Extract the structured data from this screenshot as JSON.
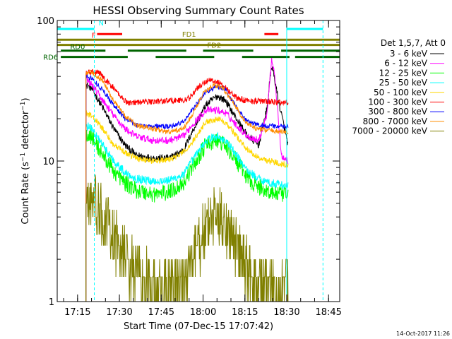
{
  "chart_data": {
    "type": "line",
    "title": "HESSI Observing Summary Count Rates",
    "xlabel": "Start Time (07-Dec-15 17:07:42)",
    "ylabel": "Count Rate (s",
    "ylabel_sup": "−1",
    "ylabel_tail": " detector",
    "ylabel_tail_sup": "−1",
    "ylabel_close": ")",
    "yscale": "log",
    "ylim": [
      1,
      100
    ],
    "xlim": [
      "17:07:42",
      "18:49:00"
    ],
    "y_ticks": [
      {
        "label": "1",
        "value": 1
      },
      {
        "label": "10",
        "value": 10
      },
      {
        "label": "100",
        "value": 100
      }
    ],
    "x_ticks": [
      {
        "label": "17:15",
        "value": "17:15"
      },
      {
        "label": "17:30",
        "value": "17:30"
      },
      {
        "label": "17:45",
        "value": "17:45"
      },
      {
        "label": "18:00",
        "value": "18:00"
      },
      {
        "label": "18:15",
        "value": "18:15"
      },
      {
        "label": "18:30",
        "value": "18:30"
      },
      {
        "label": "18:45",
        "value": "18:45"
      }
    ],
    "legend_title": "Det 1,5,7, Att 0",
    "legend_placement": "right",
    "data_start": "17:18:00",
    "data_end": "18:30:30",
    "series": [
      {
        "name": "3 - 6 keV",
        "color": "#000000",
        "noise": 0.06,
        "points": [
          [
            "17:18:00",
            35
          ],
          [
            "17:20:00",
            33
          ],
          [
            "17:24:00",
            24
          ],
          [
            "17:28:00",
            17
          ],
          [
            "17:32:00",
            13
          ],
          [
            "17:36:00",
            11
          ],
          [
            "17:42:00",
            10.5
          ],
          [
            "17:48:00",
            10.5
          ],
          [
            "17:53:00",
            12
          ],
          [
            "17:56:00",
            16
          ],
          [
            "18:01:00",
            25
          ],
          [
            "18:05:00",
            29
          ],
          [
            "18:08:00",
            27
          ],
          [
            "18:12:00",
            20
          ],
          [
            "18:16:00",
            15
          ],
          [
            "18:20:00",
            13
          ],
          [
            "18:23:00",
            24
          ],
          [
            "18:24:30",
            48
          ],
          [
            "18:25:30",
            40
          ],
          [
            "18:27:00",
            27
          ],
          [
            "18:28:00",
            22
          ],
          [
            "18:30:30",
            13
          ]
        ]
      },
      {
        "name": "6 - 12 keV",
        "color": "#ff00ff",
        "noise": 0.06,
        "points": [
          [
            "17:18:00",
            38
          ],
          [
            "17:20:00",
            35
          ],
          [
            "17:24:00",
            27
          ],
          [
            "17:28:00",
            21
          ],
          [
            "17:32:00",
            17
          ],
          [
            "17:36:00",
            15
          ],
          [
            "17:42:00",
            14
          ],
          [
            "17:48:00",
            14
          ],
          [
            "17:53:00",
            15
          ],
          [
            "17:56:00",
            18
          ],
          [
            "18:01:00",
            23
          ],
          [
            "18:05:00",
            23
          ],
          [
            "18:08:00",
            22
          ],
          [
            "18:12:00",
            18
          ],
          [
            "18:16:00",
            15
          ],
          [
            "18:20:00",
            14
          ],
          [
            "18:23:00",
            22
          ],
          [
            "18:24:30",
            52
          ],
          [
            "18:25:30",
            45
          ],
          [
            "18:27:00",
            20
          ],
          [
            "18:28:00",
            11
          ],
          [
            "18:30:30",
            10
          ]
        ]
      },
      {
        "name": "12 - 25 keV",
        "color": "#00ff00",
        "noise": 0.14,
        "points": [
          [
            "17:18:00",
            16
          ],
          [
            "17:20:00",
            15
          ],
          [
            "17:24:00",
            11
          ],
          [
            "17:28:00",
            8.5
          ],
          [
            "17:32:00",
            7
          ],
          [
            "17:36:00",
            6.2
          ],
          [
            "17:42:00",
            5.8
          ],
          [
            "17:48:00",
            6
          ],
          [
            "17:53:00",
            7
          ],
          [
            "17:56:00",
            9
          ],
          [
            "18:01:00",
            13
          ],
          [
            "18:05:00",
            14
          ],
          [
            "18:08:00",
            13
          ],
          [
            "18:12:00",
            10
          ],
          [
            "18:16:00",
            7.5
          ],
          [
            "18:20:00",
            6.5
          ],
          [
            "18:24:00",
            6
          ],
          [
            "18:28:00",
            5.8
          ],
          [
            "18:30:30",
            5.6
          ]
        ]
      },
      {
        "name": "25 - 50 keV",
        "color": "#00ffff",
        "noise": 0.07,
        "points": [
          [
            "17:18:00",
            18
          ],
          [
            "17:20:00",
            17
          ],
          [
            "17:24:00",
            13
          ],
          [
            "17:28:00",
            10
          ],
          [
            "17:32:00",
            8.3
          ],
          [
            "17:36:00",
            7.5
          ],
          [
            "17:42:00",
            7.2
          ],
          [
            "17:48:00",
            7.3
          ],
          [
            "17:53:00",
            8
          ],
          [
            "17:56:00",
            10
          ],
          [
            "18:01:00",
            14
          ],
          [
            "18:05:00",
            15
          ],
          [
            "18:08:00",
            14
          ],
          [
            "18:12:00",
            11
          ],
          [
            "18:16:00",
            8.5
          ],
          [
            "18:20:00",
            7.5
          ],
          [
            "18:24:00",
            7
          ],
          [
            "18:28:00",
            6.8
          ],
          [
            "18:30:30",
            6.6
          ]
        ]
      },
      {
        "name": "50 - 100 keV",
        "color": "#ffd700",
        "noise": 0.05,
        "points": [
          [
            "17:18:00",
            22
          ],
          [
            "17:20:00",
            21
          ],
          [
            "17:24:00",
            17
          ],
          [
            "17:28:00",
            13
          ],
          [
            "17:32:00",
            11.5
          ],
          [
            "17:36:00",
            10.5
          ],
          [
            "17:42:00",
            10
          ],
          [
            "17:48:00",
            10.2
          ],
          [
            "17:53:00",
            11.5
          ],
          [
            "17:56:00",
            13.5
          ],
          [
            "18:01:00",
            19
          ],
          [
            "18:05:00",
            20
          ],
          [
            "18:08:00",
            19
          ],
          [
            "18:12:00",
            15
          ],
          [
            "18:16:00",
            12
          ],
          [
            "18:20:00",
            10.5
          ],
          [
            "18:24:00",
            10
          ],
          [
            "18:28:00",
            9.6
          ],
          [
            "18:30:30",
            9.4
          ]
        ]
      },
      {
        "name": "100 - 300 keV",
        "color": "#ff0000",
        "noise": 0.05,
        "points": [
          [
            "17:18:00",
            42
          ],
          [
            "17:20:00",
            43
          ],
          [
            "17:23:00",
            42
          ],
          [
            "17:26:00",
            36
          ],
          [
            "17:28:00",
            33
          ],
          [
            "17:31:00",
            28
          ],
          [
            "17:33:00",
            26
          ],
          [
            "17:50:00",
            27
          ],
          [
            "17:53:00",
            27
          ],
          [
            "17:55:00",
            28
          ],
          [
            "17:58:00",
            33
          ],
          [
            "18:02:00",
            38
          ],
          [
            "18:06:00",
            36
          ],
          [
            "18:09:00",
            32
          ],
          [
            "18:12:00",
            28
          ],
          [
            "18:15:00",
            27
          ],
          [
            "18:30:30",
            26
          ]
        ]
      },
      {
        "name": "300 - 800 keV",
        "color": "#0000ff",
        "noise": 0.04,
        "points": [
          [
            "17:18:00",
            40
          ],
          [
            "17:20:00",
            39
          ],
          [
            "17:24:00",
            32
          ],
          [
            "17:28:00",
            25
          ],
          [
            "17:32:00",
            20
          ],
          [
            "17:36:00",
            18
          ],
          [
            "17:48:00",
            17.5
          ],
          [
            "17:53:00",
            19
          ],
          [
            "17:56:00",
            23
          ],
          [
            "18:01:00",
            31
          ],
          [
            "18:05:00",
            34
          ],
          [
            "18:08:00",
            32
          ],
          [
            "18:12:00",
            24
          ],
          [
            "18:16:00",
            19
          ],
          [
            "18:20:00",
            18
          ],
          [
            "18:30:30",
            17.5
          ]
        ]
      },
      {
        "name": "800 - 7000 keV",
        "color": "#ff8c00",
        "noise": 0.04,
        "points": [
          [
            "17:18:00",
            42
          ],
          [
            "17:20:00",
            43
          ],
          [
            "17:24:00",
            37
          ],
          [
            "17:28:00",
            27
          ],
          [
            "17:32:00",
            21
          ],
          [
            "17:36:00",
            18
          ],
          [
            "17:48:00",
            16
          ],
          [
            "17:53:00",
            17
          ],
          [
            "17:56:00",
            21
          ],
          [
            "18:00:00",
            30
          ],
          [
            "18:04:00",
            35
          ],
          [
            "18:07:00",
            33
          ],
          [
            "18:11:00",
            26
          ],
          [
            "18:15:00",
            19
          ],
          [
            "18:19:00",
            17
          ],
          [
            "18:24:00",
            16.5
          ],
          [
            "18:30:30",
            16
          ]
        ]
      },
      {
        "name": "7000 - 20000 keV",
        "color": "#808000",
        "noise": 0.5,
        "step": 0.5,
        "points": [
          [
            "17:18:00",
            5.5
          ],
          [
            "17:21:00",
            5
          ],
          [
            "17:24:00",
            4
          ],
          [
            "17:27:00",
            3
          ],
          [
            "17:30:00",
            2.5
          ],
          [
            "17:33:00",
            2
          ],
          [
            "17:37:00",
            1.5
          ],
          [
            "17:42:00",
            1.3
          ],
          [
            "17:47:00",
            1.2
          ],
          [
            "17:52:00",
            1.3
          ],
          [
            "17:56:00",
            2
          ],
          [
            "18:00:00",
            3
          ],
          [
            "18:04:00",
            4
          ],
          [
            "18:07:00",
            4
          ],
          [
            "18:10:00",
            3
          ],
          [
            "18:14:00",
            2
          ],
          [
            "18:18:00",
            1.5
          ],
          [
            "18:24:00",
            1.3
          ],
          [
            "18:30:30",
            1.2
          ]
        ]
      }
    ],
    "status_bars": [
      {
        "name": "N",
        "color": "#00ffff",
        "y": 87,
        "segments": [
          [
            "17:07:42",
            "17:21:00"
          ],
          [
            "18:30:00",
            "18:43:00"
          ]
        ]
      },
      {
        "name": "F",
        "color": "#ff0000",
        "y": 80,
        "segments": [
          [
            "17:22:00",
            "17:31:00"
          ],
          [
            "18:22:00",
            "18:27:00"
          ]
        ]
      },
      {
        "name": "FD1",
        "color": "#808000",
        "y": 73,
        "segments": [
          [
            "17:07:42",
            "18:49:00"
          ]
        ]
      },
      {
        "name": "FD2",
        "color": "#808000",
        "y": 67,
        "segments": [
          [
            "17:07:42",
            "18:49:00"
          ]
        ]
      },
      {
        "name": "RD0",
        "color": "#006400",
        "y": 61,
        "segments": [
          [
            "17:09:00",
            "17:25:00"
          ],
          [
            "17:33:00",
            "17:54:00"
          ],
          [
            "18:00:00",
            "18:18:00"
          ],
          [
            "18:28:00",
            "18:49:00"
          ]
        ]
      },
      {
        "name": "RD6",
        "color": "#006400",
        "y": 55,
        "segments": [
          [
            "17:09:00",
            "17:33:00"
          ],
          [
            "17:43:00",
            "18:04:00"
          ],
          [
            "18:14:00",
            "18:31:00"
          ],
          [
            "18:33:00",
            "18:49:00"
          ]
        ]
      }
    ],
    "vertical_markers": [
      {
        "time": "17:21:00",
        "color": "#00ffff",
        "style": "dashed"
      },
      {
        "time": "18:30:00",
        "color": "#00ffff",
        "style": "solid"
      },
      {
        "time": "18:43:00",
        "color": "#00ffff",
        "style": "dashed"
      }
    ],
    "annotations": [
      {
        "text": "N",
        "color": "#00ffff"
      },
      {
        "text": "F",
        "color": "#ff0000"
      },
      {
        "text": "FD1",
        "color": "#808000"
      },
      {
        "text": "FD2",
        "color": "#808000"
      },
      {
        "text": "RD0",
        "color": "#006400"
      },
      {
        "text": "RD6",
        "color": "#006400"
      }
    ]
  },
  "footer": {
    "timestamp": "14-Oct-2017 11:26"
  }
}
